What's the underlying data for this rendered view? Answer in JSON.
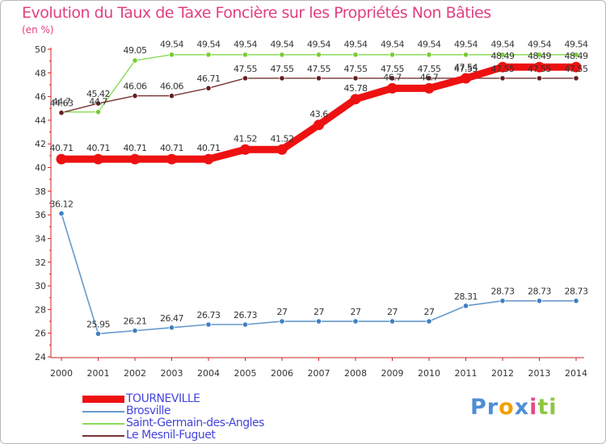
{
  "chart_data": {
    "type": "line",
    "title": "Evolution du Taux de Taxe Foncière sur les Propriétés Non Bâties",
    "ylabel": "(en %)",
    "xlabel": "",
    "ylim": [
      24,
      50
    ],
    "yticks": [
      24,
      26,
      28,
      30,
      32,
      34,
      36,
      38,
      40,
      42,
      44,
      46,
      48,
      50
    ],
    "categories": [
      "2000",
      "2001",
      "2002",
      "2003",
      "2004",
      "2005",
      "2006",
      "2007",
      "2008",
      "2009",
      "2010",
      "2011",
      "2012",
      "2013",
      "2014"
    ],
    "grid": false,
    "series": [
      {
        "name": "TOURNEVILLE",
        "color": "#ee1111",
        "marker_color": "#ee1111",
        "label_color": "#333333",
        "values": [
          40.71,
          40.71,
          40.71,
          40.71,
          40.71,
          41.52,
          41.52,
          43.6,
          45.78,
          46.7,
          46.7,
          47.54,
          48.49,
          48.49,
          48.49
        ],
        "labels": [
          "40.71",
          "40.71",
          "40.71",
          "40.71",
          "40.71",
          "41.52",
          "41.52",
          "43.6",
          "45.78",
          "46.7",
          "46.7",
          "47.54",
          "48.49",
          "48.49",
          "48.49"
        ]
      },
      {
        "name": "Brosville",
        "color": "#6699cc",
        "marker_color": "#3d7fc4",
        "label_color": "#333333",
        "values": [
          36.12,
          25.95,
          26.21,
          26.47,
          26.73,
          26.73,
          27,
          27,
          27,
          27,
          27,
          28.31,
          28.73,
          28.73,
          28.73
        ],
        "labels": [
          "36.12",
          "25.95",
          "26.21",
          "26.47",
          "26.73",
          "26.73",
          "27",
          "27",
          "27",
          "27",
          "27",
          "28.31",
          "28.73",
          "28.73",
          "28.73"
        ]
      },
      {
        "name": "Saint-Germain-des-Angles",
        "color": "#88dd55",
        "marker_color": "#77cc33",
        "label_color": "#333333",
        "values": [
          44.7,
          44.7,
          49.05,
          49.54,
          49.54,
          49.54,
          49.54,
          49.54,
          49.54,
          49.54,
          49.54,
          49.54,
          49.54,
          49.54,
          49.54
        ],
        "labels": [
          "44.7",
          "44.7",
          "49.05",
          "49.54",
          "49.54",
          "49.54",
          "49.54",
          "49.54",
          "49.54",
          "49.54",
          "49.54",
          "49.54",
          "49.54",
          "49.54",
          "49.54"
        ]
      },
      {
        "name": "Le Mesnil-Fuguet",
        "color": "#773333",
        "marker_color": "#661f1f",
        "label_color": "#333333",
        "values": [
          44.63,
          45.42,
          46.06,
          46.06,
          46.71,
          47.55,
          47.55,
          47.55,
          47.55,
          47.55,
          47.55,
          47.55,
          47.55,
          47.55,
          47.55
        ],
        "labels": [
          "44.63",
          "45.42",
          "46.06",
          "46.06",
          "46.71",
          "47.55",
          "47.55",
          "47.55",
          "47.55",
          "47.55",
          "47.55",
          "47.55",
          "47.55",
          "47.55",
          "47.55"
        ]
      }
    ],
    "legend_position": "bottom-left"
  },
  "brand": {
    "letters": [
      "P",
      "r",
      "o",
      "x",
      "i",
      "t",
      "i"
    ],
    "colors": [
      "#4f8ed6",
      "#4f8ed6",
      "#f0a000",
      "#4f8ed6",
      "#e64a8a",
      "#8fc640",
      "#8fc640"
    ]
  }
}
